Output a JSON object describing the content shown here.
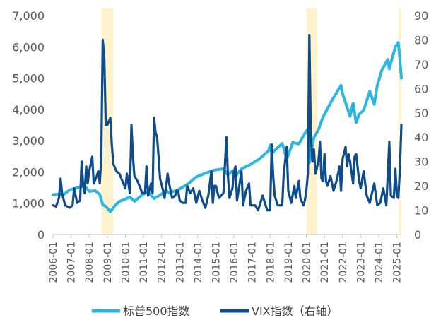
{
  "chart_data": {
    "type": "line",
    "x_range": [
      "2006-01",
      "2025-04"
    ],
    "x_tick_labels": [
      "2006-01",
      "2007-01",
      "2008-01",
      "2009-01",
      "2010-01",
      "2011-01",
      "2012-01",
      "2013-01",
      "2014-01",
      "2015-01",
      "2016-01",
      "2017-01",
      "2018-01",
      "2019-01",
      "2020-01",
      "2021-01",
      "2022-01",
      "2023-01",
      "2024-01",
      "2025-01"
    ],
    "y_left": {
      "range": [
        0,
        7000
      ],
      "tick_labels": [
        "0",
        "1,000",
        "2,000",
        "3,000",
        "4,000",
        "5,000",
        "6,000",
        "7,000"
      ]
    },
    "y_right": {
      "range": [
        0,
        90
      ],
      "tick_labels": [
        "0",
        "10",
        "20",
        "30",
        "40",
        "50",
        "60",
        "70",
        "80",
        "90"
      ]
    },
    "grid": false,
    "legend_position": "bottom",
    "highlight_periods": [
      {
        "start": "2008-09",
        "end": "2009-05",
        "color": "#FFF2CC"
      },
      {
        "start": "2020-01",
        "end": "2020-08",
        "color": "#FFF2CC"
      },
      {
        "start": "2025-02",
        "end": "2025-04",
        "color": "#FFF2CC"
      }
    ],
    "series": [
      {
        "name": "标普500指数",
        "axis": "left",
        "color": "#2BB7E0",
        "points": [
          [
            "2006-01",
            1270
          ],
          [
            "2006-05",
            1290
          ],
          [
            "2006-08",
            1280
          ],
          [
            "2006-12",
            1420
          ],
          [
            "2007-06",
            1510
          ],
          [
            "2007-10",
            1560
          ],
          [
            "2008-01",
            1380
          ],
          [
            "2008-05",
            1400
          ],
          [
            "2008-08",
            1280
          ],
          [
            "2008-10",
            950
          ],
          [
            "2008-12",
            900
          ],
          [
            "2009-03",
            730
          ],
          [
            "2009-06",
            920
          ],
          [
            "2009-09",
            1060
          ],
          [
            "2009-12",
            1110
          ],
          [
            "2010-04",
            1200
          ],
          [
            "2010-07",
            1060
          ],
          [
            "2010-12",
            1260
          ],
          [
            "2011-04",
            1360
          ],
          [
            "2011-08",
            1150
          ],
          [
            "2011-12",
            1260
          ],
          [
            "2012-04",
            1400
          ],
          [
            "2012-06",
            1330
          ],
          [
            "2012-12",
            1430
          ],
          [
            "2013-06",
            1600
          ],
          [
            "2013-12",
            1840
          ],
          [
            "2014-06",
            1960
          ],
          [
            "2014-12",
            2060
          ],
          [
            "2015-06",
            2100
          ],
          [
            "2015-09",
            1900
          ],
          [
            "2015-12",
            2040
          ],
          [
            "2016-02",
            1860
          ],
          [
            "2016-06",
            2100
          ],
          [
            "2016-12",
            2240
          ],
          [
            "2017-06",
            2420
          ],
          [
            "2017-12",
            2680
          ],
          [
            "2018-01",
            2860
          ],
          [
            "2018-02",
            2600
          ],
          [
            "2018-09",
            2910
          ],
          [
            "2018-12",
            2400
          ],
          [
            "2019-04",
            2940
          ],
          [
            "2019-08",
            2900
          ],
          [
            "2019-12",
            3230
          ],
          [
            "2020-02",
            3380
          ],
          [
            "2020-03",
            2300
          ],
          [
            "2020-06",
            3100
          ],
          [
            "2020-09",
            3350
          ],
          [
            "2020-12",
            3750
          ],
          [
            "2021-06",
            4290
          ],
          [
            "2021-12",
            4766
          ],
          [
            "2022-01",
            4500
          ],
          [
            "2022-06",
            3780
          ],
          [
            "2022-08",
            4200
          ],
          [
            "2022-10",
            3580
          ],
          [
            "2022-12",
            3840
          ],
          [
            "2023-03",
            3970
          ],
          [
            "2023-07",
            4580
          ],
          [
            "2023-10",
            4160
          ],
          [
            "2023-12",
            4770
          ],
          [
            "2024-03",
            5250
          ],
          [
            "2024-07",
            5600
          ],
          [
            "2024-08",
            5300
          ],
          [
            "2024-12",
            6000
          ],
          [
            "2025-02",
            6140
          ],
          [
            "2025-03",
            5600
          ],
          [
            "2025-04",
            5000
          ]
        ]
      },
      {
        "name": "VIX指数（右轴）",
        "axis": "right",
        "color": "#0E4C8C",
        "points": [
          [
            "2006-01",
            12
          ],
          [
            "2006-03",
            11.5
          ],
          [
            "2006-05",
            15
          ],
          [
            "2006-06",
            23
          ],
          [
            "2006-07",
            17
          ],
          [
            "2006-09",
            12
          ],
          [
            "2006-12",
            11
          ],
          [
            "2007-02",
            12
          ],
          [
            "2007-03",
            19
          ],
          [
            "2007-05",
            13
          ],
          [
            "2007-07",
            14
          ],
          [
            "2007-08",
            30
          ],
          [
            "2007-09",
            20
          ],
          [
            "2007-10",
            17
          ],
          [
            "2007-11",
            28
          ],
          [
            "2007-12",
            21
          ],
          [
            "2008-01",
            26
          ],
          [
            "2008-03",
            32
          ],
          [
            "2008-04",
            21
          ],
          [
            "2008-06",
            24
          ],
          [
            "2008-07",
            26
          ],
          [
            "2008-08",
            21
          ],
          [
            "2008-09",
            32
          ],
          [
            "2008-10",
            80
          ],
          [
            "2008-11",
            72
          ],
          [
            "2008-12",
            45
          ],
          [
            "2009-01",
            45
          ],
          [
            "2009-03",
            48
          ],
          [
            "2009-04",
            37
          ],
          [
            "2009-05",
            29
          ],
          [
            "2009-07",
            26
          ],
          [
            "2009-09",
            25
          ],
          [
            "2009-11",
            22
          ],
          [
            "2010-01",
            19
          ],
          [
            "2010-02",
            25
          ],
          [
            "2010-04",
            17
          ],
          [
            "2010-05",
            45
          ],
          [
            "2010-06",
            32
          ],
          [
            "2010-07",
            24
          ],
          [
            "2010-09",
            22
          ],
          [
            "2010-11",
            19
          ],
          [
            "2010-12",
            17
          ],
          [
            "2011-02",
            17
          ],
          [
            "2011-03",
            28
          ],
          [
            "2011-04",
            16
          ],
          [
            "2011-06",
            21
          ],
          [
            "2011-07",
            17
          ],
          [
            "2011-08",
            48
          ],
          [
            "2011-09",
            42
          ],
          [
            "2011-10",
            40
          ],
          [
            "2011-11",
            32
          ],
          [
            "2011-12",
            23
          ],
          [
            "2012-02",
            18
          ],
          [
            "2012-03",
            15
          ],
          [
            "2012-05",
            25
          ],
          [
            "2012-06",
            21
          ],
          [
            "2012-08",
            15
          ],
          [
            "2012-10",
            16
          ],
          [
            "2012-11",
            18
          ],
          [
            "2012-12",
            18
          ],
          [
            "2013-01",
            14
          ],
          [
            "2013-03",
            13
          ],
          [
            "2013-05",
            13
          ],
          [
            "2013-06",
            20
          ],
          [
            "2013-08",
            17
          ],
          [
            "2013-10",
            19
          ],
          [
            "2013-12",
            13
          ],
          [
            "2014-02",
            18
          ],
          [
            "2014-04",
            14
          ],
          [
            "2014-06",
            11
          ],
          [
            "2014-08",
            16
          ],
          [
            "2014-10",
            26
          ],
          [
            "2014-11",
            13
          ],
          [
            "2014-12",
            20
          ],
          [
            "2015-01",
            20
          ],
          [
            "2015-03",
            15
          ],
          [
            "2015-06",
            17
          ],
          [
            "2015-08",
            40
          ],
          [
            "2015-09",
            24
          ],
          [
            "2015-10",
            15
          ],
          [
            "2015-12",
            19
          ],
          [
            "2016-01",
            26
          ],
          [
            "2016-02",
            28
          ],
          [
            "2016-03",
            14
          ],
          [
            "2016-06",
            26
          ],
          [
            "2016-07",
            12
          ],
          [
            "2016-09",
            18
          ],
          [
            "2016-11",
            21
          ],
          [
            "2016-12",
            12
          ],
          [
            "2017-03",
            12
          ],
          [
            "2017-05",
            10
          ],
          [
            "2017-08",
            16
          ],
          [
            "2017-11",
            10
          ],
          [
            "2018-01",
            10
          ],
          [
            "2018-02",
            37
          ],
          [
            "2018-03",
            24
          ],
          [
            "2018-04",
            16
          ],
          [
            "2018-06",
            12
          ],
          [
            "2018-09",
            12
          ],
          [
            "2018-10",
            25
          ],
          [
            "2018-12",
            36
          ],
          [
            "2019-01",
            18
          ],
          [
            "2019-03",
            13
          ],
          [
            "2019-05",
            20
          ],
          [
            "2019-06",
            15
          ],
          [
            "2019-08",
            22
          ],
          [
            "2019-09",
            15
          ],
          [
            "2019-11",
            12
          ],
          [
            "2019-12",
            14
          ],
          [
            "2020-01",
            18
          ],
          [
            "2020-02",
            25
          ],
          [
            "2020-03",
            82
          ],
          [
            "2020-04",
            40
          ],
          [
            "2020-05",
            30
          ],
          [
            "2020-06",
            35
          ],
          [
            "2020-07",
            25
          ],
          [
            "2020-09",
            30
          ],
          [
            "2020-10",
            38
          ],
          [
            "2020-11",
            23
          ],
          [
            "2020-12",
            22
          ],
          [
            "2021-01",
            33
          ],
          [
            "2021-02",
            22
          ],
          [
            "2021-03",
            20
          ],
          [
            "2021-05",
            24
          ],
          [
            "2021-07",
            18
          ],
          [
            "2021-09",
            22
          ],
          [
            "2021-11",
            28
          ],
          [
            "2021-12",
            18
          ],
          [
            "2022-01",
            31
          ],
          [
            "2022-03",
            36
          ],
          [
            "2022-04",
            28
          ],
          [
            "2022-05",
            33
          ],
          [
            "2022-06",
            30
          ],
          [
            "2022-08",
            21
          ],
          [
            "2022-09",
            32
          ],
          [
            "2022-10",
            33
          ],
          [
            "2022-12",
            22
          ],
          [
            "2023-01",
            19
          ],
          [
            "2023-03",
            26
          ],
          [
            "2023-05",
            16
          ],
          [
            "2023-07",
            13
          ],
          [
            "2023-10",
            21
          ],
          [
            "2023-12",
            12
          ],
          [
            "2024-02",
            13
          ],
          [
            "2024-04",
            19
          ],
          [
            "2024-06",
            12
          ],
          [
            "2024-08",
            38
          ],
          [
            "2024-09",
            16
          ],
          [
            "2024-11",
            15
          ],
          [
            "2024-12",
            27
          ],
          [
            "2025-01",
            16
          ],
          [
            "2025-02",
            15
          ],
          [
            "2025-03",
            27
          ],
          [
            "2025-04",
            45
          ]
        ]
      }
    ]
  }
}
